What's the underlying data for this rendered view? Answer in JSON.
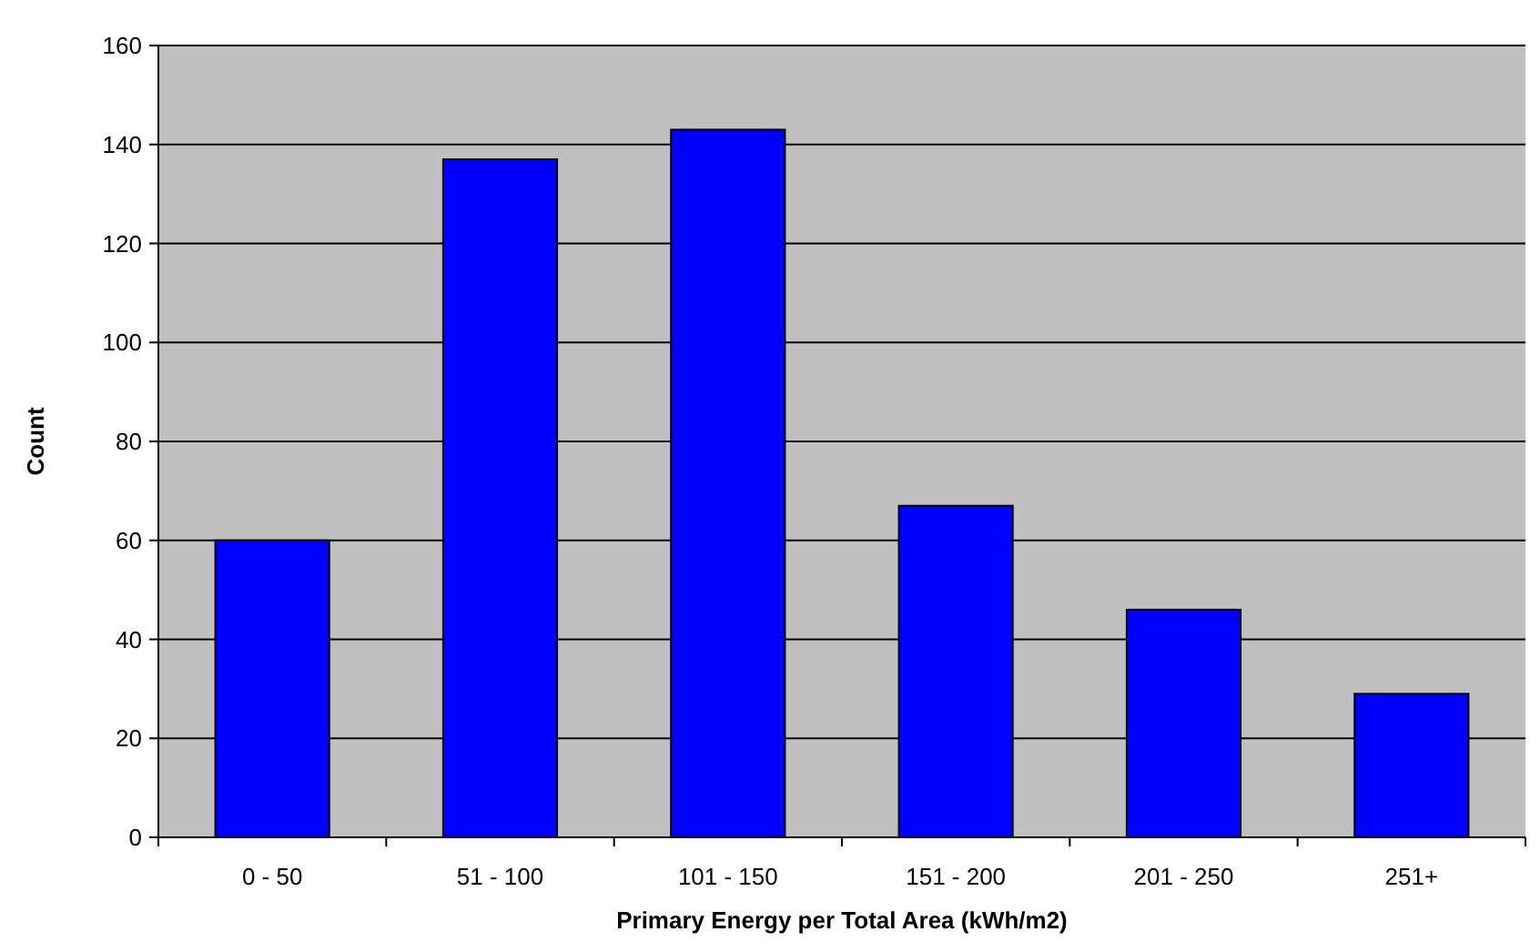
{
  "chart_data": {
    "type": "bar",
    "xlabel": "Primary Energy per Total Area (kWh/m2)",
    "ylabel": "Count",
    "categories": [
      "0 - 50",
      "51 - 100",
      "101 - 150",
      "151 - 200",
      "201 - 250",
      "251+"
    ],
    "values": [
      60,
      137,
      143,
      67,
      46,
      29
    ],
    "color": "#0000ff",
    "ylim": [
      0,
      160
    ],
    "yticks": [
      0,
      20,
      40,
      60,
      80,
      100,
      120,
      140,
      160
    ],
    "grid": "y"
  }
}
